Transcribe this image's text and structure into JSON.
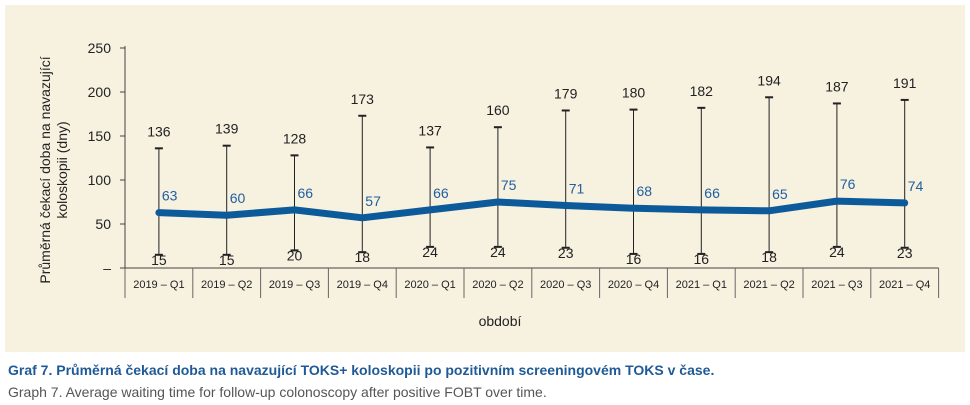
{
  "caption": {
    "czech": "Graf 7. Průměrná čekací doba na navazující TOKS+ koloskopii po pozitivním screeningovém TOKS v čase.",
    "english": "Graph 7. Average waiting time for follow-up colonoscopy after positive FOBT over time."
  },
  "colors": {
    "panel_background": "#f7f1e0",
    "mean_line": "#0d5a9b",
    "mean_label": "#1f5fa0",
    "range_bar": "#222222",
    "caption_title": "#1f5a96"
  },
  "chart_data": {
    "type": "line",
    "title": "",
    "xlabel": "období",
    "ylabel": "Průměrná čekací doba na navazující koloskopii (dny)",
    "ylim": [
      0,
      250
    ],
    "yticks": [
      "250",
      "200",
      "150",
      "100",
      "50",
      "–"
    ],
    "grid": false,
    "legend": "none",
    "categories": [
      "2019 – Q1",
      "2019 – Q2",
      "2019 – Q3",
      "2019 – Q4",
      "2020 – Q1",
      "2020 – Q2",
      "2020 – Q3",
      "2020 – Q4",
      "2021 – Q1",
      "2021 – Q2",
      "2021 – Q3",
      "2021 – Q4"
    ],
    "series": [
      {
        "values": [
          63,
          60,
          66,
          57,
          66,
          75,
          71,
          68,
          66,
          65,
          76,
          74
        ]
      }
    ],
    "range": {
      "max": [
        136,
        139,
        128,
        173,
        137,
        160,
        179,
        180,
        182,
        194,
        187,
        191
      ],
      "min": [
        15,
        15,
        20,
        18,
        24,
        24,
        23,
        16,
        16,
        18,
        24,
        23
      ]
    }
  }
}
